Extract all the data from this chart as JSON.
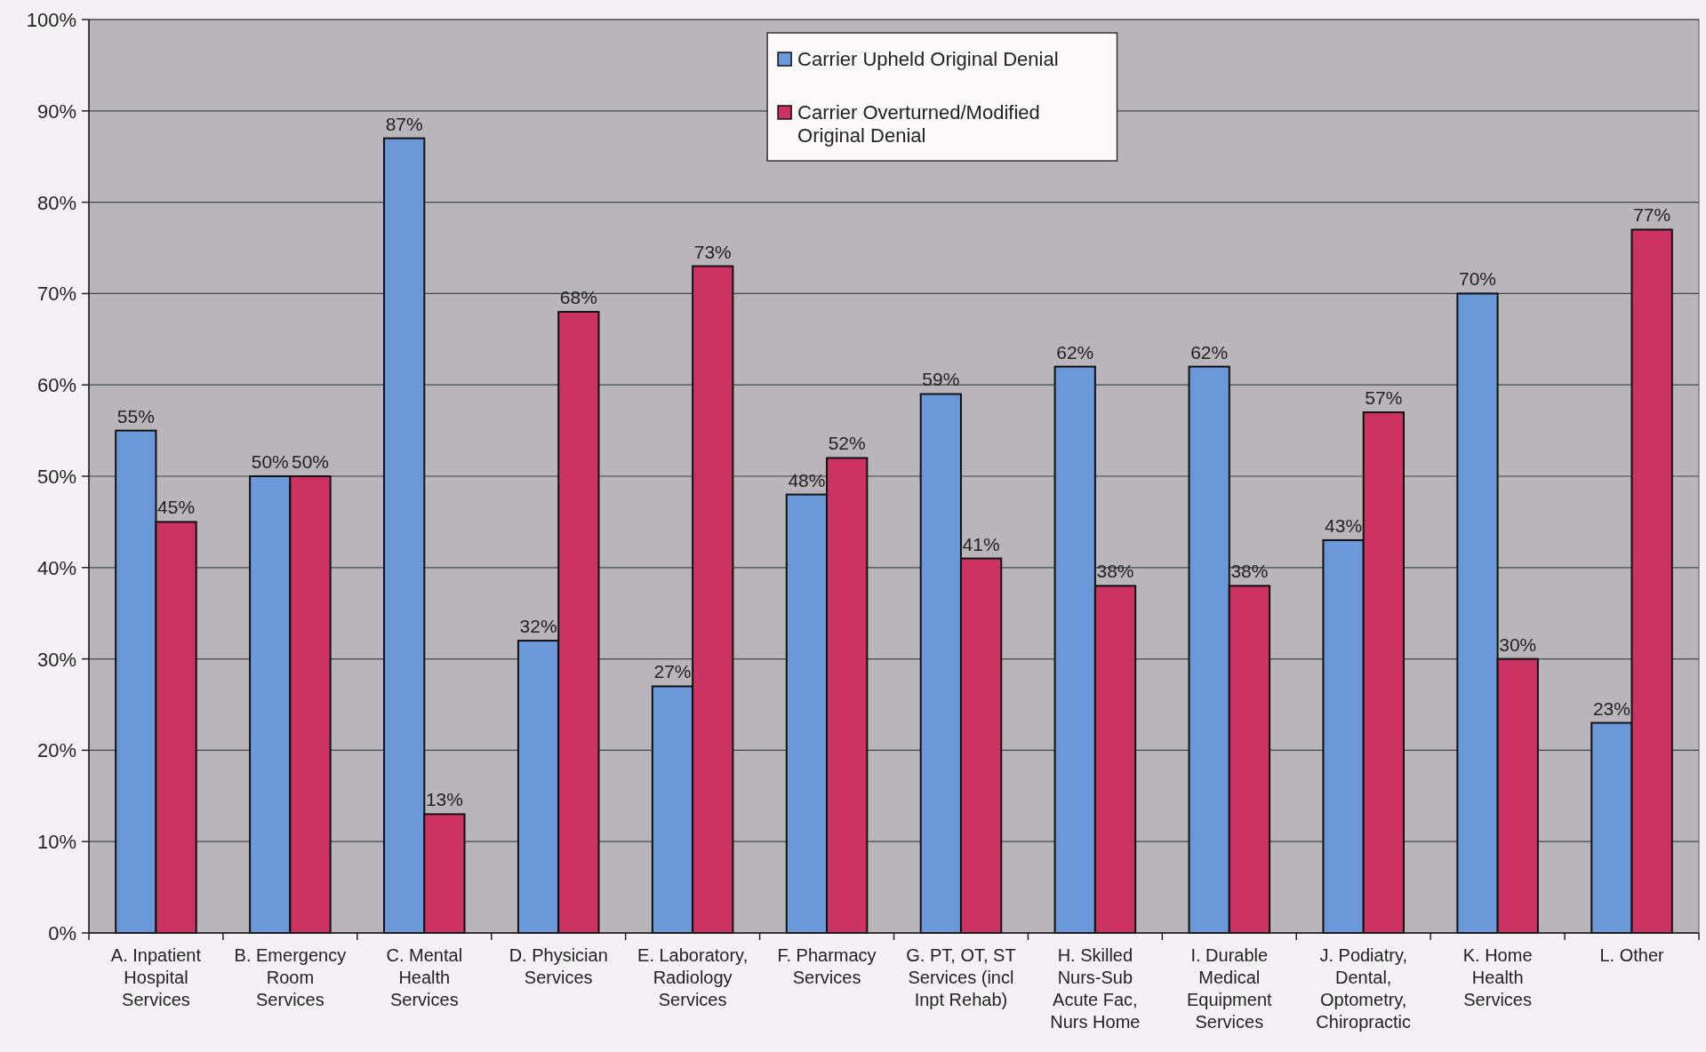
{
  "chart_data": {
    "type": "bar",
    "categories": [
      "A. Inpatient Hospital Services",
      "B. Emergency Room Services",
      "C. Mental Health Services",
      "D. Physician Services",
      "E. Laboratory, Radiology Services",
      "F. Pharmacy Services",
      "G. PT, OT, ST Services (incl Inpt Rehab)",
      "H. Skilled Nurs-Sub Acute Fac, Nurs Home",
      "I. Durable Medical Equipment Services",
      "J. Podiatry, Dental, Optometry, Chiropractic",
      "K. Home Health Services",
      "L. Other"
    ],
    "series": [
      {
        "name": "Carrier Upheld Original Denial",
        "color": "#6a98d8",
        "values": [
          55,
          50,
          87,
          32,
          27,
          48,
          59,
          62,
          62,
          43,
          70,
          23
        ],
        "value_labels": [
          "55%",
          "50%",
          "87%",
          "32%",
          "27%",
          "48%",
          "59%",
          "62%",
          "62%",
          "43%",
          "70%",
          "23%"
        ]
      },
      {
        "name": "Carrier Overturned/Modified Original Denial",
        "color": "#cc3362",
        "values": [
          45,
          50,
          13,
          68,
          73,
          52,
          41,
          38,
          38,
          57,
          30,
          77
        ],
        "value_labels": [
          "45%",
          "50%",
          "13%",
          "68%",
          "73%",
          "52%",
          "41%",
          "38%",
          "38%",
          "57%",
          "30%",
          "77%"
        ]
      }
    ],
    "ylim": [
      0,
      100
    ],
    "yticks": [
      {
        "value": 0,
        "label": "0%"
      },
      {
        "value": 10,
        "label": "10%"
      },
      {
        "value": 20,
        "label": "20%"
      },
      {
        "value": 30,
        "label": "30%"
      },
      {
        "value": 40,
        "label": "40%"
      },
      {
        "value": 50,
        "label": "50%"
      },
      {
        "value": 60,
        "label": "60%"
      },
      {
        "value": 70,
        "label": "70%"
      },
      {
        "value": 80,
        "label": "80%"
      },
      {
        "value": 90,
        "label": "90%"
      },
      {
        "value": 100,
        "label": "100%"
      }
    ],
    "grid": "y",
    "legend": "top"
  }
}
